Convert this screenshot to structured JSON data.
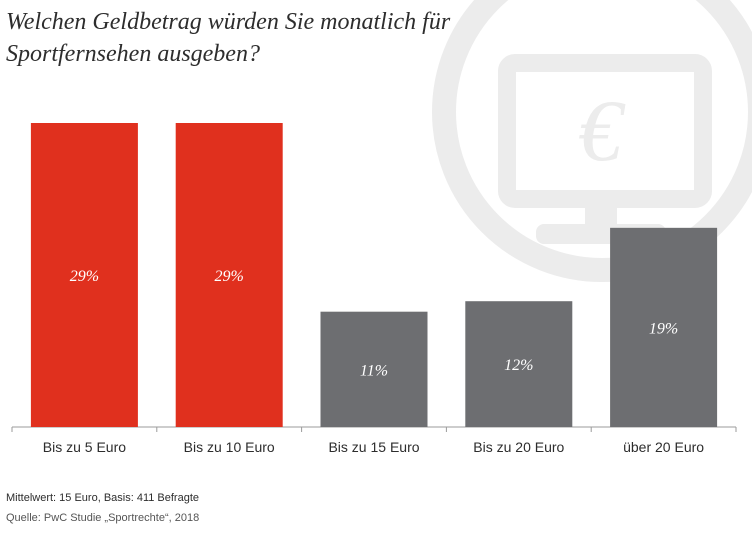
{
  "title_lines": [
    "Welchen Geldbetrag würden Sie monatlich für",
    "Sportfernsehen ausgeben?"
  ],
  "decor_icon": "monitor-euro-icon",
  "colors": {
    "highlight": "#e0301e",
    "default": "#6d6e71",
    "axis": "#9b9b9b",
    "watermark": "#ececec"
  },
  "chart_data": {
    "type": "bar",
    "title": "Welchen Geldbetrag würden Sie monatlich für Sportfernsehen ausgeben?",
    "categories": [
      "Bis zu 5 Euro",
      "Bis zu 10 Euro",
      "Bis zu 15 Euro",
      "Bis zu 20 Euro",
      "über 20 Euro"
    ],
    "values": [
      29,
      29,
      11,
      12,
      19
    ],
    "value_labels": [
      "29%",
      "29%",
      "11%",
      "12%",
      "19%"
    ],
    "highlighted": [
      true,
      true,
      false,
      false,
      false
    ],
    "xlabel": "",
    "ylabel": "",
    "ylim": [
      0,
      29
    ],
    "grid": false
  },
  "footer": {
    "note": "Mittelwert: 15 Euro, Basis: 411 Befragte",
    "source": "Quelle: PwC Studie „Sportrechte“, 2018"
  }
}
